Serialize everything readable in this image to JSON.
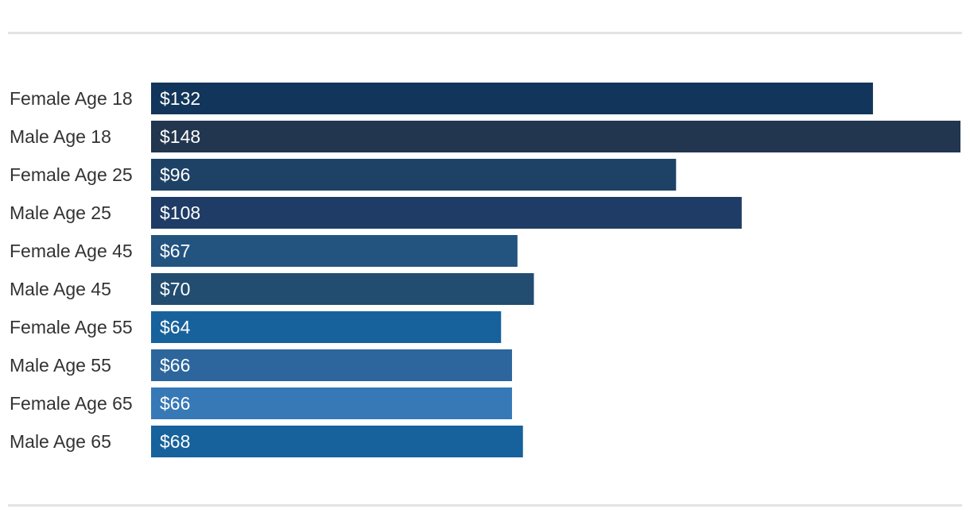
{
  "chart_data": {
    "type": "bar",
    "orientation": "horizontal",
    "categories": [
      "Female Age 18",
      "Male Age 18",
      "Female Age 25",
      "Male Age 25",
      "Female Age 45",
      "Male Age 45",
      "Female Age 55",
      "Male Age 55",
      "Female Age 65",
      "Male Age 65"
    ],
    "values": [
      132,
      148,
      96,
      108,
      67,
      70,
      64,
      66,
      66,
      68
    ],
    "value_labels": [
      "$132",
      "$148",
      "$96",
      "$108",
      "$67",
      "$70",
      "$64",
      "$66",
      "$66",
      "$68"
    ],
    "colors": [
      "#12355b",
      "#22364f",
      "#1e4266",
      "#1f3c66",
      "#235480",
      "#224d70",
      "#17629c",
      "#2c669c",
      "#3679b6",
      "#17629c"
    ],
    "xlim": [
      0,
      148
    ],
    "grid": false,
    "legend": "none",
    "title": "",
    "xlabel": "",
    "ylabel": ""
  },
  "colors": {
    "background": "#ffffff",
    "rule": "#e3e3e3",
    "category_text": "#333333",
    "value_text": "#ffffff"
  }
}
